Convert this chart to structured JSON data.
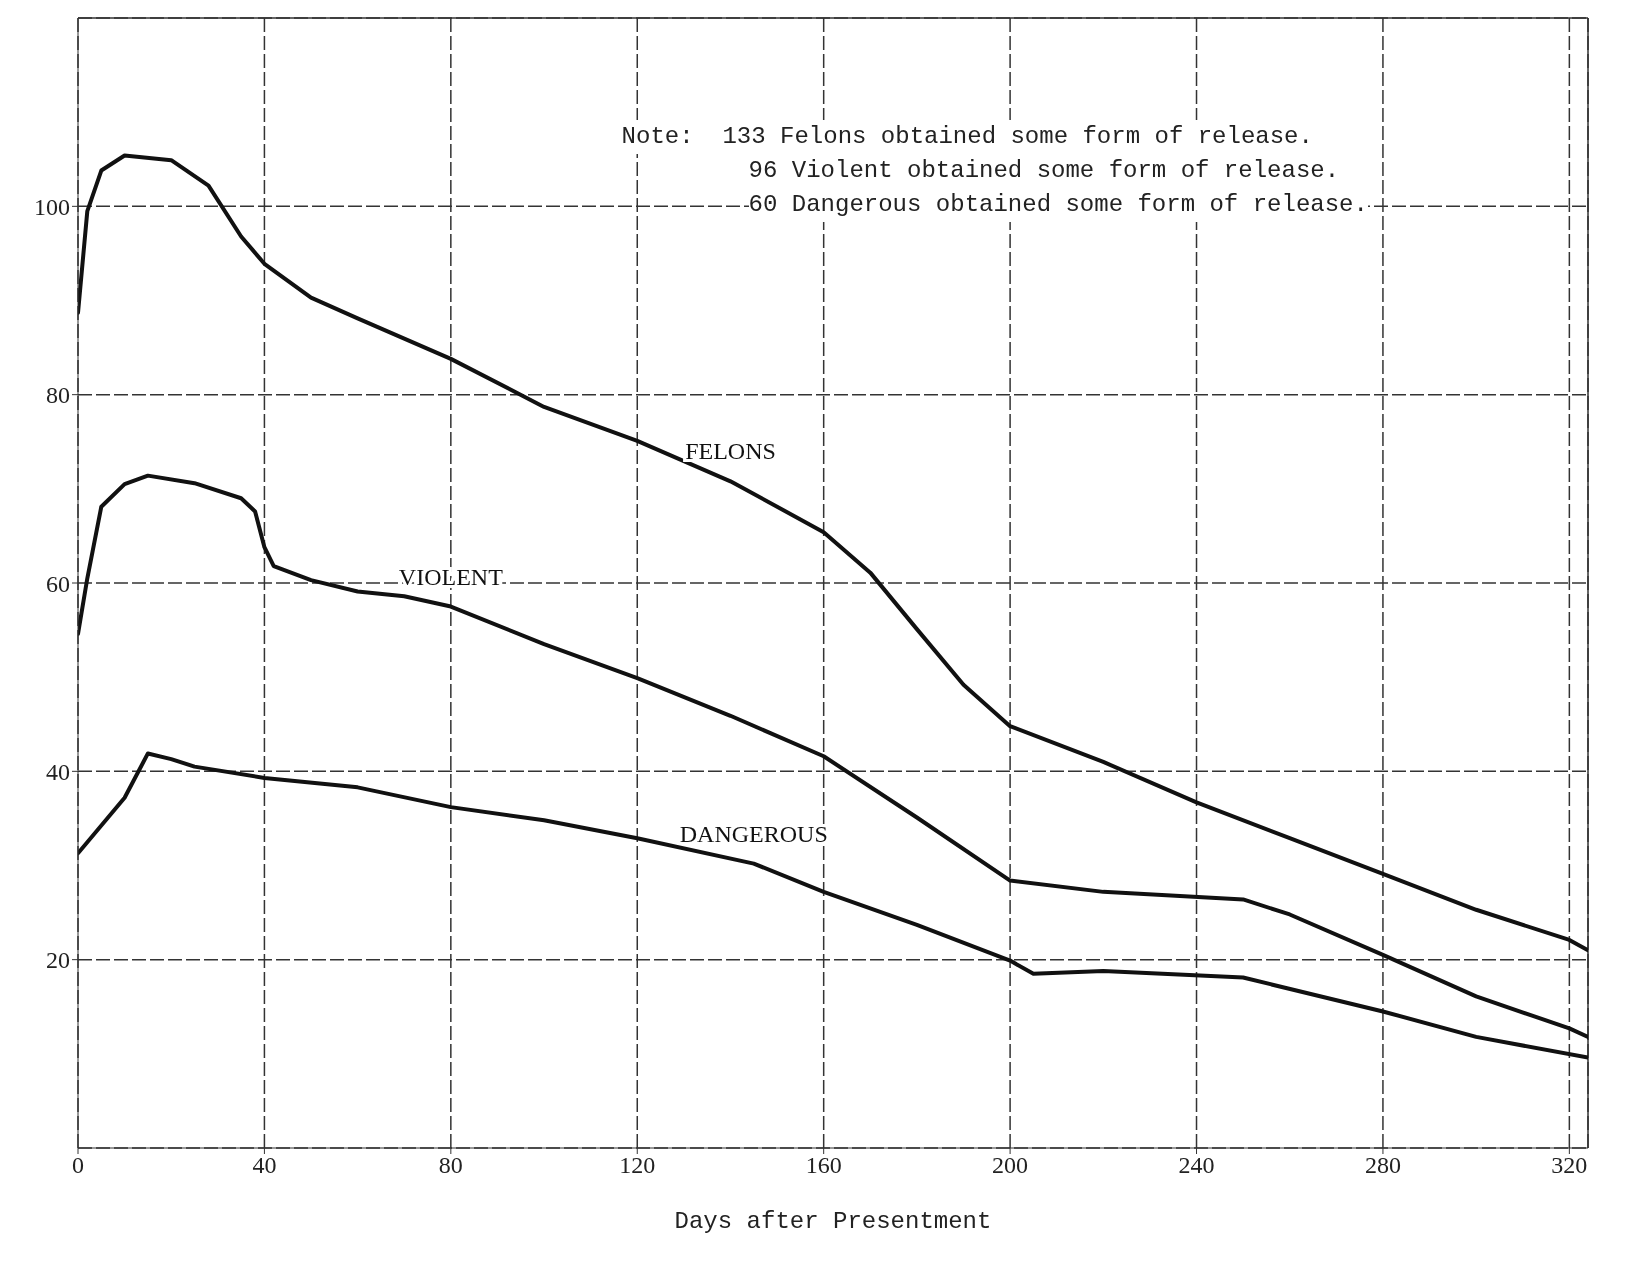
{
  "chart_data": {
    "type": "line",
    "xlabel": "Days after Presentment",
    "annotations": [
      "Note:  133 Felons obtained some form of release.",
      "96 Violent obtained some form of release.",
      "60 Dangerous obtained some form of release."
    ],
    "xlim": [
      0,
      324
    ],
    "xticks": [
      0,
      40,
      80,
      120,
      160,
      200,
      240,
      280,
      320
    ],
    "ylim": [
      0,
      120
    ],
    "yticks": [
      20,
      40,
      60,
      80,
      100
    ],
    "grid": true,
    "line_style": "solid",
    "series": [
      {
        "name": "FELONS",
        "color": "#111111",
        "x": [
          0,
          2,
          5,
          10,
          20,
          28,
          35,
          40,
          50,
          60,
          80,
          100,
          120,
          140,
          160,
          170,
          180,
          190,
          200,
          220,
          240,
          260,
          280,
          300,
          320,
          324
        ],
        "values": [
          88.7,
          99.5,
          103.8,
          105.4,
          104.9,
          102.2,
          96.8,
          93.9,
          90.3,
          88.1,
          83.8,
          78.7,
          75.1,
          70.8,
          65.4,
          61.1,
          55.1,
          49.2,
          44.8,
          41.0,
          36.7,
          32.9,
          29.1,
          25.3,
          22.1,
          21.0
        ]
      },
      {
        "name": "VIOLENT",
        "color": "#111111",
        "x": [
          0,
          2,
          5,
          10,
          15,
          25,
          35,
          38,
          40,
          42,
          50,
          60,
          70,
          80,
          100,
          120,
          140,
          160,
          180,
          200,
          220,
          250,
          260,
          280,
          300,
          320,
          324
        ],
        "values": [
          54.6,
          60.5,
          68.1,
          70.5,
          71.4,
          70.6,
          69.0,
          67.6,
          63.8,
          61.8,
          60.3,
          59.1,
          58.6,
          57.5,
          53.5,
          49.9,
          45.9,
          41.6,
          35.1,
          28.4,
          27.2,
          26.4,
          24.8,
          20.5,
          16.1,
          12.7,
          11.8
        ]
      },
      {
        "name": "DANGEROUS",
        "color": "#111111",
        "x": [
          0,
          10,
          15,
          20,
          25,
          40,
          60,
          80,
          100,
          120,
          145,
          160,
          180,
          200,
          205,
          220,
          250,
          280,
          300,
          324
        ],
        "values": [
          31.3,
          37.2,
          41.9,
          41.3,
          40.5,
          39.3,
          38.3,
          36.2,
          34.8,
          32.9,
          30.2,
          27.2,
          23.7,
          19.9,
          18.5,
          18.8,
          18.1,
          14.5,
          11.8,
          9.6
        ]
      }
    ]
  }
}
